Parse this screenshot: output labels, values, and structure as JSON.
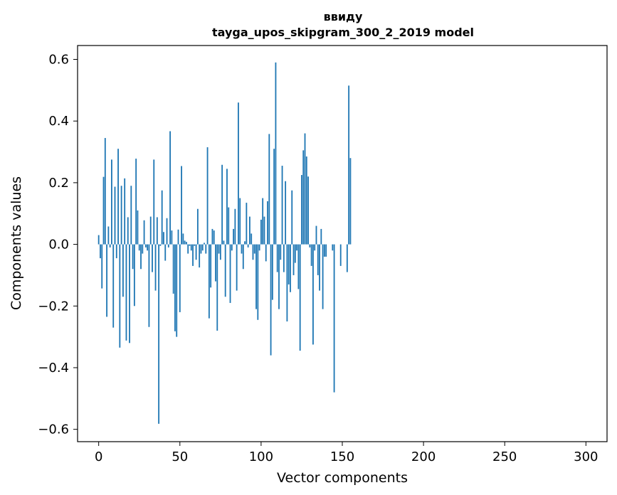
{
  "chart_data": {
    "type": "bar",
    "title": [
      "ввиду",
      "tayga_upos_skipgram_300_2_2019 model"
    ],
    "xlabel": "Vector components",
    "ylabel": "Components values",
    "xlim": [
      -13,
      313
    ],
    "ylim": [
      -0.64,
      0.645
    ],
    "xticks": [
      0,
      50,
      100,
      150,
      200,
      250,
      300
    ],
    "yticks": [
      -0.6,
      -0.4,
      -0.2,
      0.0,
      0.2,
      0.4,
      0.6
    ],
    "ytick_labels": [
      "−0.6",
      "−0.4",
      "−0.2",
      "0.0",
      "0.2",
      "0.4",
      "0.6"
    ],
    "bar_color": "#1f77b4",
    "x": "0..299",
    "values": [
      0.03,
      -0.045,
      -0.143,
      0.219,
      0.345,
      -0.235,
      0.058,
      -0.01,
      0.275,
      -0.27,
      0.187,
      -0.045,
      0.31,
      -0.335,
      0.19,
      -0.17,
      0.214,
      -0.312,
      0.088,
      -0.32,
      0.19,
      -0.08,
      -0.2,
      0.278,
      0.11,
      -0.02,
      -0.08,
      -0.03,
      0.078,
      -0.01,
      -0.02,
      -0.268,
      0.09,
      -0.09,
      0.275,
      -0.15,
      0.088,
      -0.582,
      -0.005,
      0.175,
      0.04,
      -0.053,
      0.085,
      -0.01,
      0.367,
      0.045,
      -0.16,
      -0.282,
      -0.3,
      0.048,
      -0.22,
      0.254,
      0.035,
      0.012,
      0.008,
      -0.03,
      -0.005,
      -0.02,
      -0.07,
      -0.005,
      -0.05,
      0.115,
      -0.075,
      -0.03,
      -0.02,
      0.005,
      -0.03,
      0.315,
      -0.24,
      -0.14,
      0.05,
      0.045,
      -0.12,
      -0.28,
      -0.03,
      -0.05,
      0.258,
      0.012,
      -0.17,
      0.245,
      0.12,
      -0.19,
      -0.02,
      0.05,
      0.115,
      -0.15,
      0.46,
      0.15,
      -0.03,
      -0.08,
      0.01,
      0.135,
      -0.01,
      0.09,
      0.035,
      -0.05,
      -0.03,
      -0.21,
      -0.245,
      -0.02,
      0.08,
      0.15,
      0.09,
      -0.055,
      0.14,
      0.358,
      -0.36,
      -0.18,
      0.31,
      0.59,
      -0.09,
      -0.21,
      -0.05,
      0.255,
      -0.09,
      0.205,
      -0.25,
      -0.13,
      -0.155,
      0.175,
      -0.1,
      -0.06,
      -0.02,
      -0.145,
      -0.345,
      0.225,
      0.305,
      0.36,
      0.285,
      0.22,
      -0.01,
      -0.07,
      -0.325,
      -0.02,
      0.06,
      -0.1,
      -0.15,
      0.05,
      -0.21,
      -0.04,
      -0.04,
      0.0,
      0.0,
      0.0,
      -0.02,
      -0.48,
      0.0,
      0.0,
      0.0,
      -0.07,
      0.0,
      0.0,
      0.0,
      -0.09,
      0.515,
      0.28,
      0.0,
      0.0,
      0.0,
      0.0,
      0.0,
      0.0,
      0.0,
      0.0,
      0.0,
      0.0,
      0.0,
      0.0,
      0.0,
      0.0,
      0.0,
      0.0,
      0.0,
      0.0,
      0.0,
      0.0,
      0.0,
      0.0,
      0.0,
      0.0,
      0.0,
      0.0,
      0.0,
      0.0,
      0.0,
      0.0,
      0.0,
      0.0,
      0.0,
      0.0,
      0.0,
      0.0,
      0.0,
      0.0,
      0.0,
      0.0,
      0.0,
      0.0,
      0.0,
      0.0,
      0.0,
      0.0,
      0.0,
      0.0,
      0.0,
      0.0,
      0.0,
      0.0,
      0.0,
      0.0,
      0.0,
      0.0,
      0.0,
      0.0,
      0.0,
      0.0,
      0.0,
      0.0,
      0.0,
      0.0,
      0.0,
      0.0,
      0.0,
      0.0,
      0.0,
      0.0,
      0.0,
      0.0,
      0.0,
      0.0,
      0.0,
      0.0,
      0.0,
      0.0,
      0.0,
      0.0,
      0.0,
      0.0,
      0.0,
      0.0,
      0.0,
      0.0,
      0.0,
      0.0,
      0.0,
      0.0,
      0.0,
      0.0,
      0.0,
      0.0,
      0.0,
      0.0,
      0.0,
      0.0,
      0.0,
      0.0,
      0.0,
      0.0,
      0.0,
      0.0,
      0.0,
      0.0,
      0.0,
      0.0,
      0.0,
      0.0,
      0.0,
      0.0,
      0.0,
      0.0,
      0.0,
      0.0,
      0.0,
      0.0,
      0.0,
      0.0,
      0.0,
      0.0,
      0.0,
      0.0,
      0.0,
      0.0,
      0.0,
      0.0,
      0.0,
      0.0,
      0.0,
      0.0,
      0.0,
      0.0,
      0.0,
      0.0,
      0.0,
      0.0,
      0.0,
      0.0,
      0.0,
      0.0,
      0.0,
      0.0
    ]
  }
}
